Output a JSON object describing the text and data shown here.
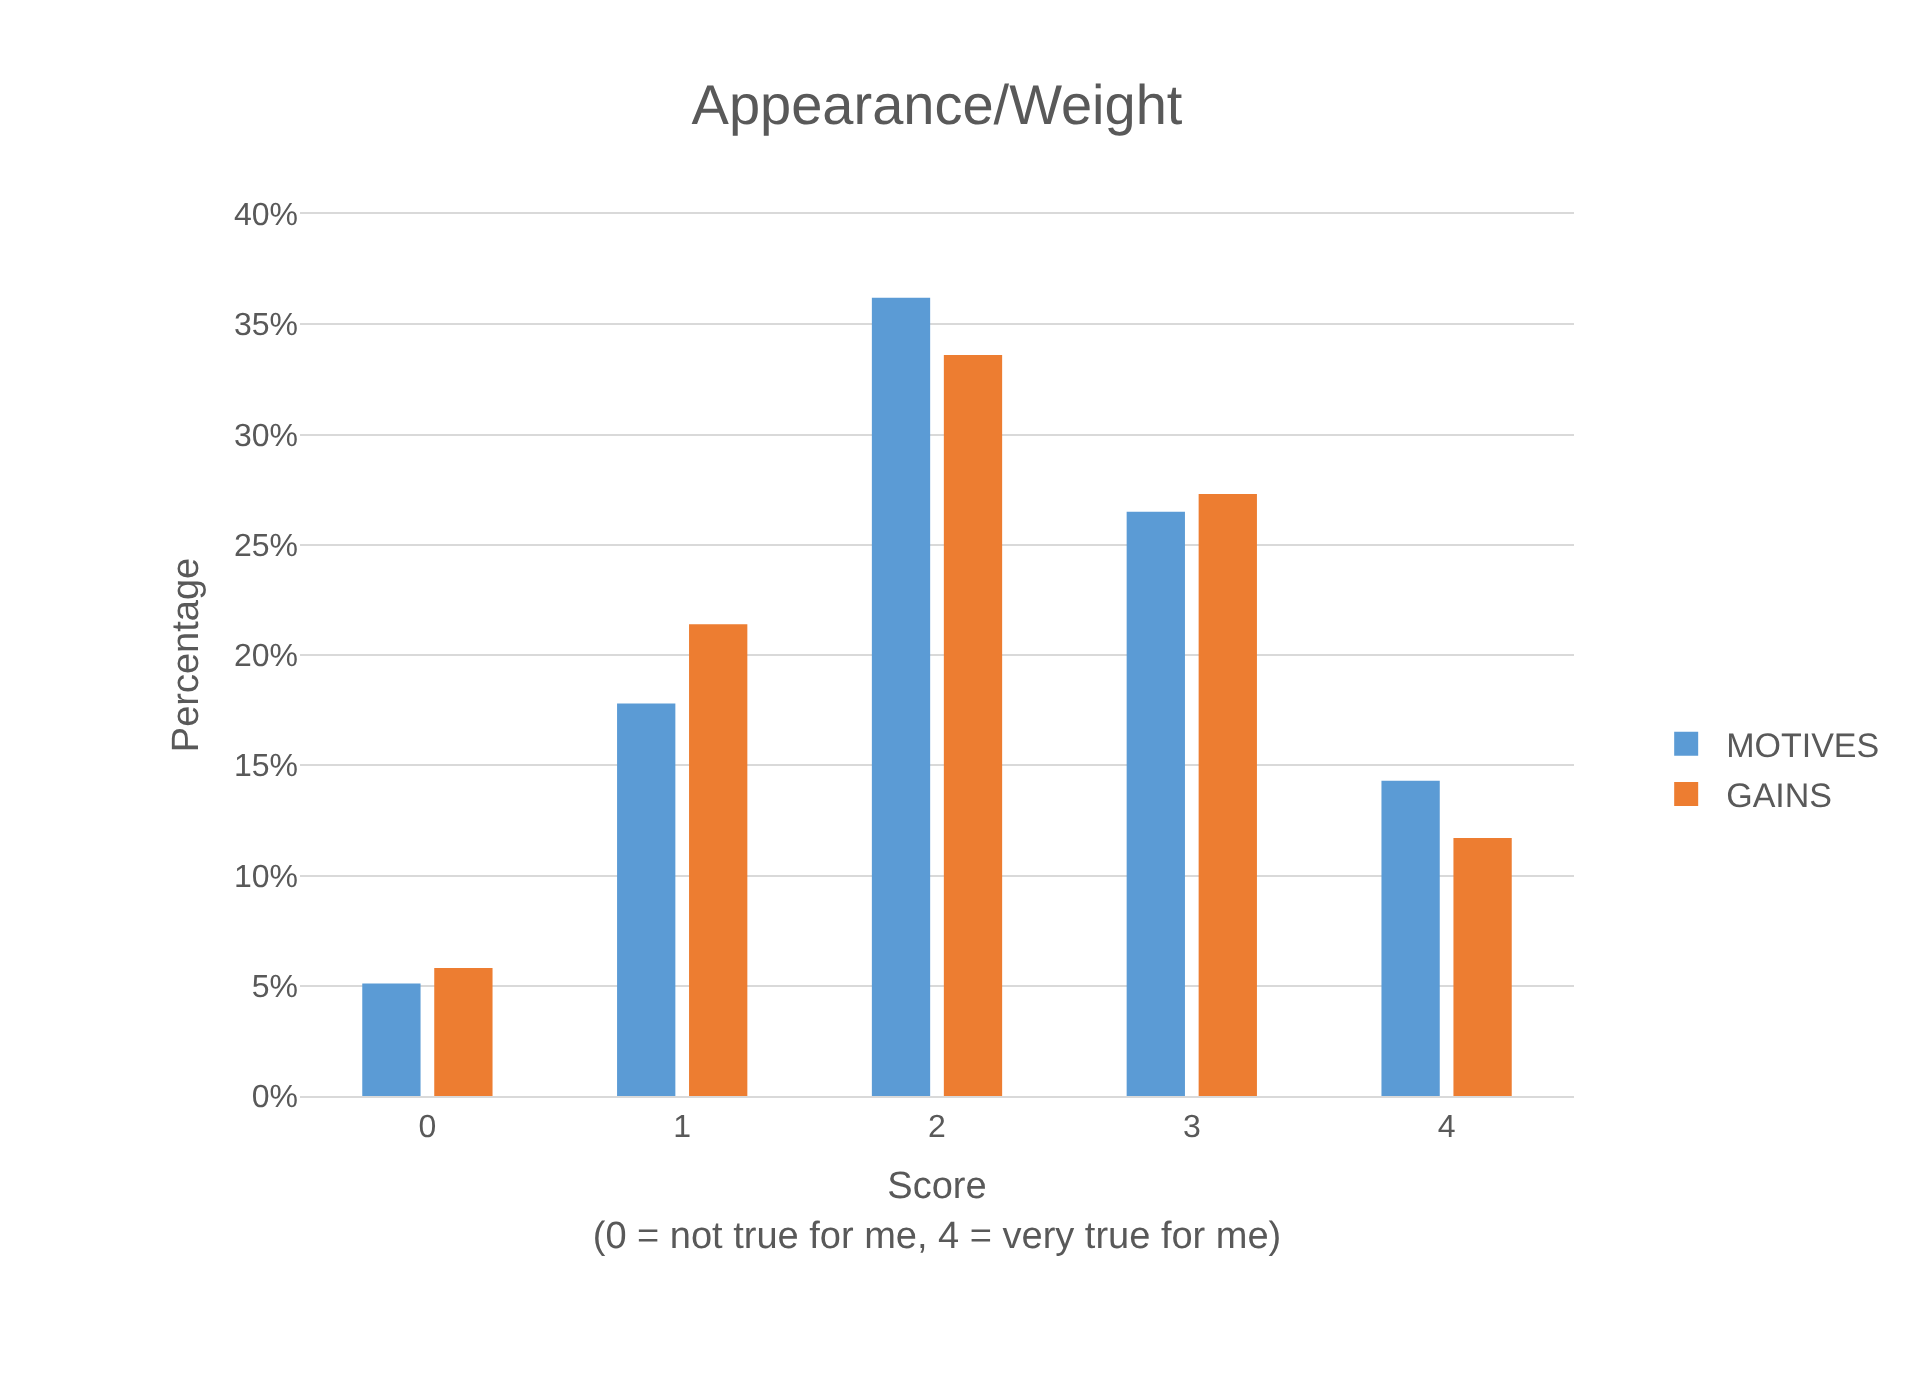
{
  "chart_data": {
    "type": "bar",
    "title": "Appearance/Weight",
    "xlabel": "Score\n(0 = not true for me, 4 = very true for me)",
    "ylabel": "Percentage",
    "categories": [
      "0",
      "1",
      "2",
      "3",
      "4"
    ],
    "series": [
      {
        "name": "MOTIVES",
        "color": "#5b9bd5",
        "values": [
          5.1,
          17.8,
          36.2,
          26.5,
          14.3
        ]
      },
      {
        "name": "GAINS",
        "color": "#ed7d31",
        "values": [
          5.8,
          21.4,
          33.6,
          27.3,
          11.7
        ]
      }
    ],
    "ylim": [
      0,
      40
    ],
    "yticks": [
      {
        "value": 0,
        "label": "0%"
      },
      {
        "value": 5,
        "label": "5%"
      },
      {
        "value": 10,
        "label": "10%"
      },
      {
        "value": 15,
        "label": "15%"
      },
      {
        "value": 20,
        "label": "20%"
      },
      {
        "value": 25,
        "label": "25%"
      },
      {
        "value": 30,
        "label": "30%"
      },
      {
        "value": 35,
        "label": "35%"
      },
      {
        "value": 40,
        "label": "40%"
      }
    ],
    "grid": "y",
    "legend": "right"
  }
}
